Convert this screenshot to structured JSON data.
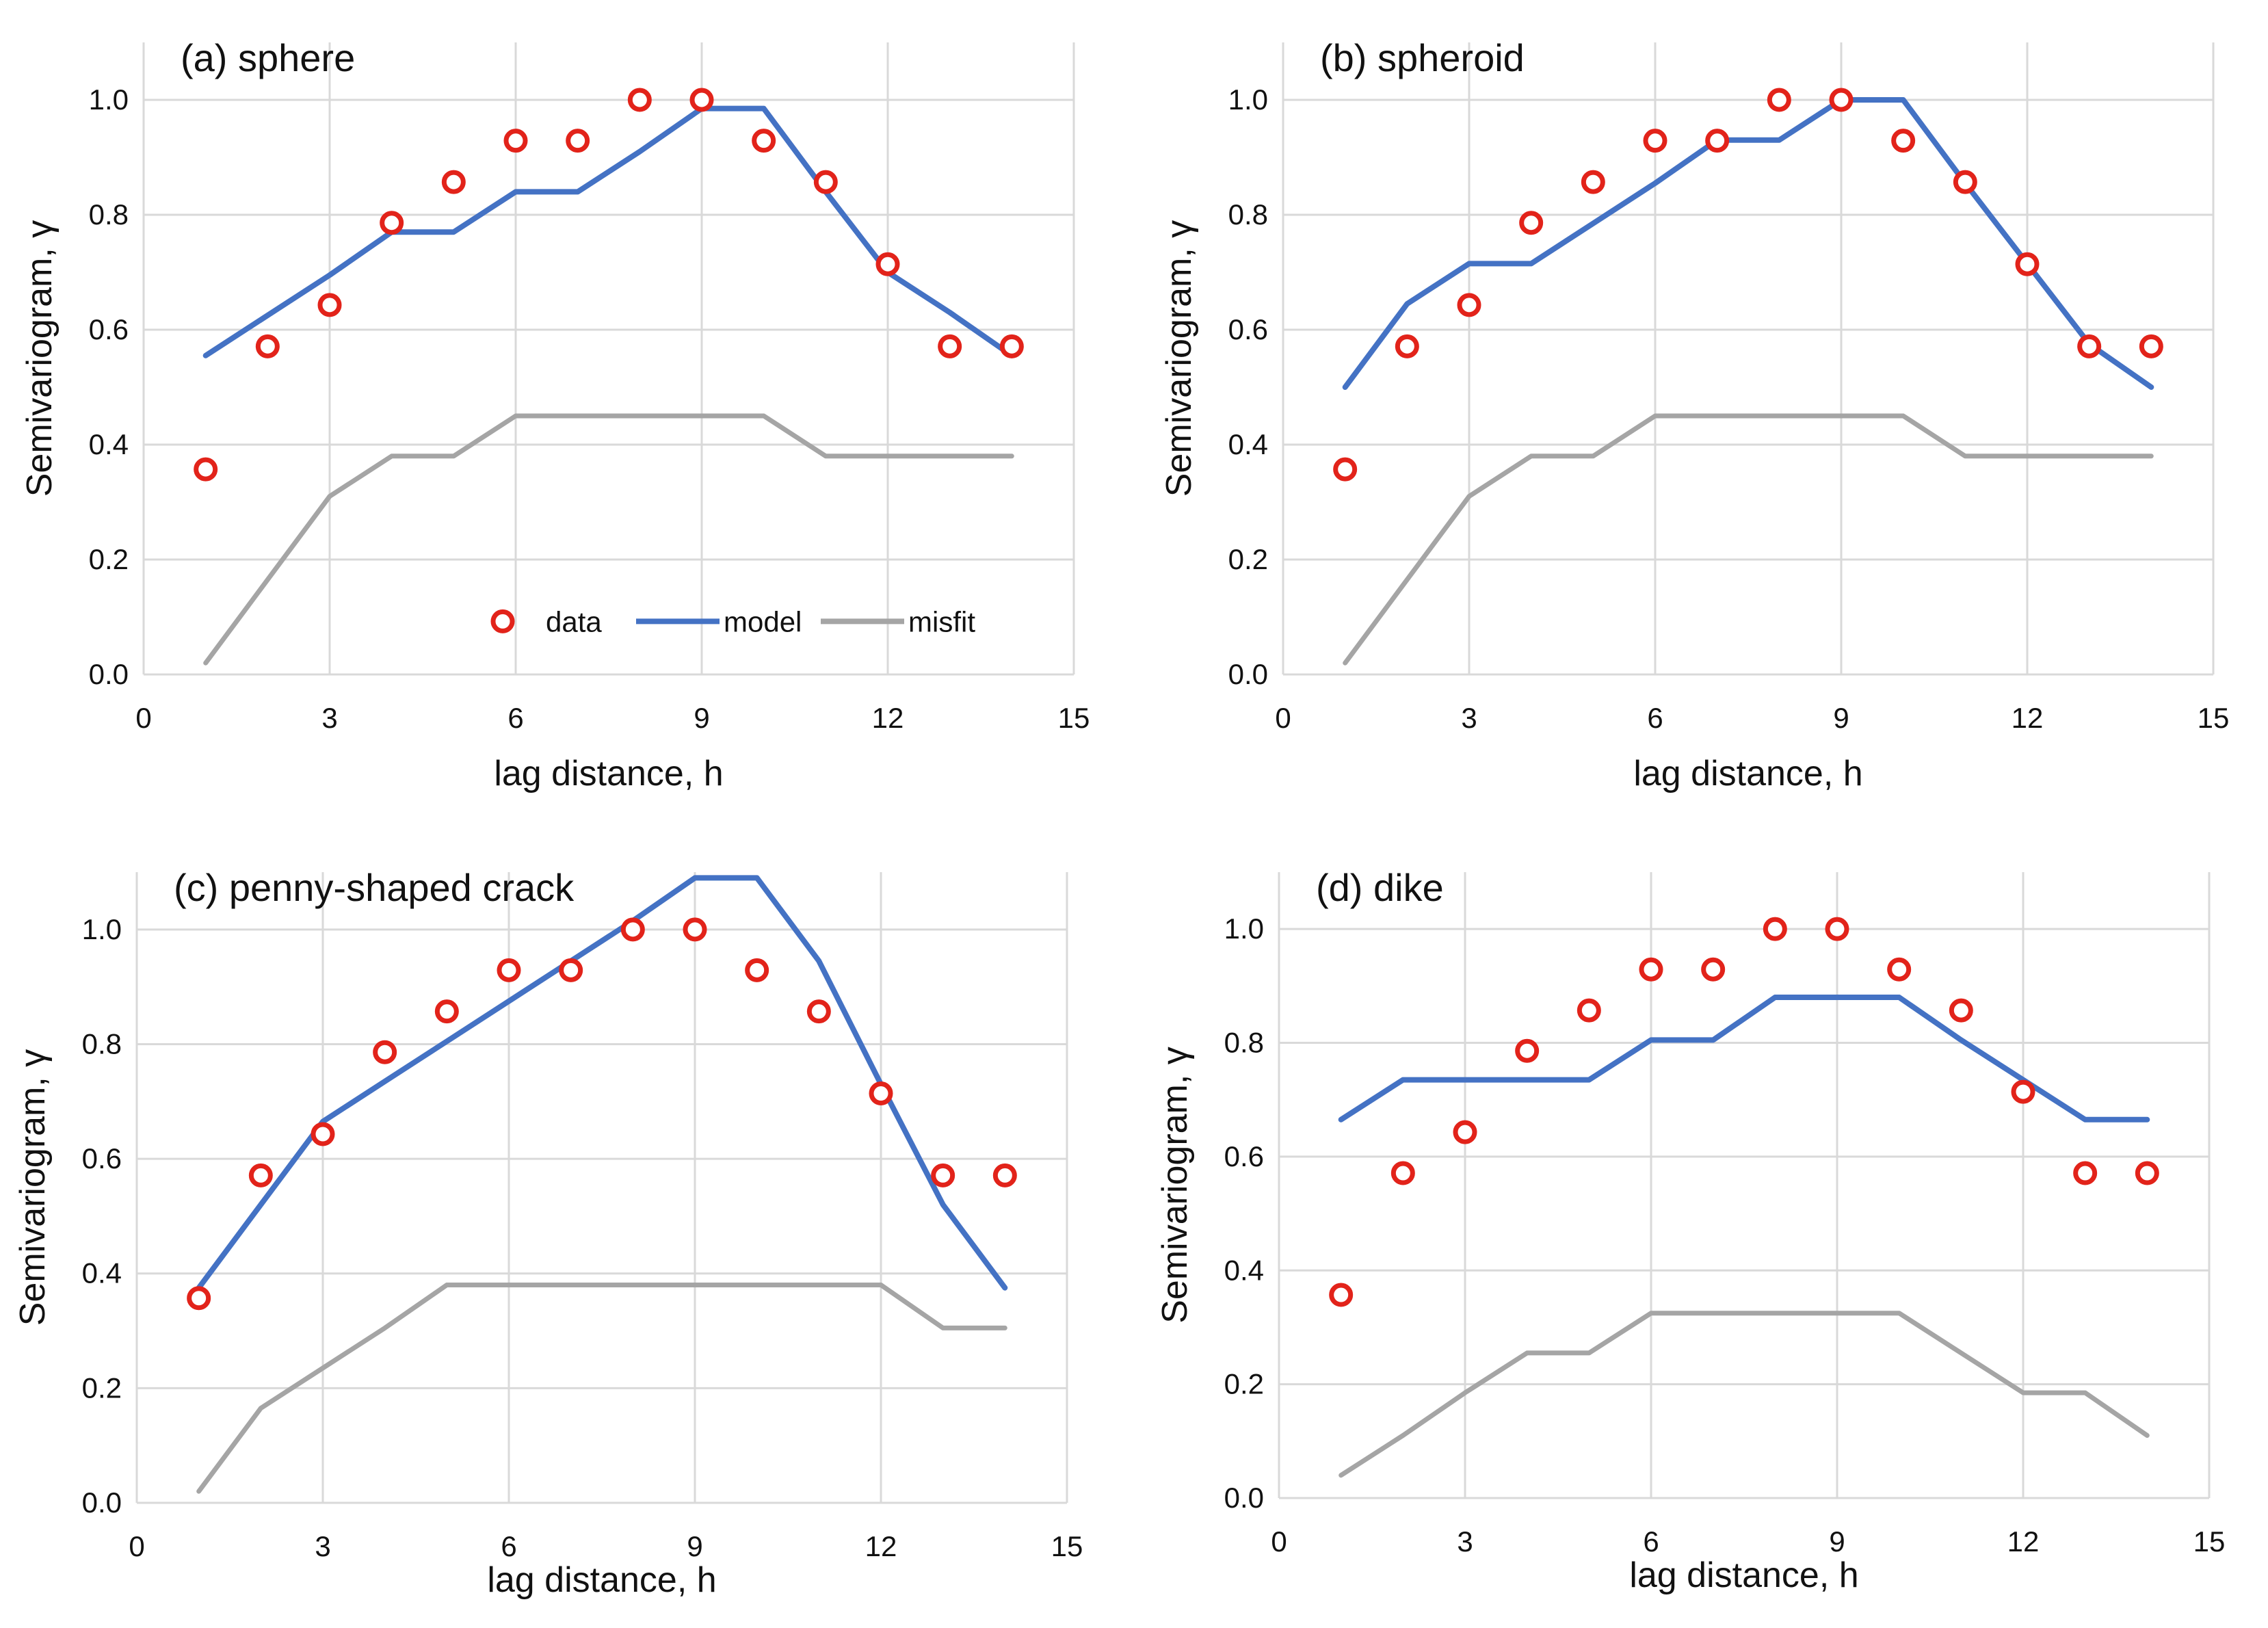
{
  "figure": {
    "legend": {
      "data": "data",
      "model": "model",
      "misfit": "misfit"
    },
    "colors": {
      "data": "#e2231a",
      "model": "#4472c4",
      "misfit": "#a5a5a5",
      "grid": "#d9d9d9",
      "axis": "#bfbfbf"
    }
  },
  "chart_data": [
    {
      "type": "line",
      "title": "(a) sphere",
      "xlabel": "lag distance, h",
      "ylabel": "Semivariogram, γ",
      "xlim": [
        0,
        15
      ],
      "ylim": [
        0,
        1.1
      ],
      "xticks": [
        0,
        3,
        6,
        9,
        12,
        15
      ],
      "yticks": [
        0.0,
        0.2,
        0.4,
        0.6,
        0.8,
        1.0
      ],
      "legend_position": "bottom-right",
      "series": [
        {
          "name": "data",
          "style": "markers",
          "x": [
            1,
            2,
            3,
            4,
            5,
            6,
            7,
            8,
            9,
            10,
            11,
            12,
            13,
            14
          ],
          "y": [
            0.357,
            0.571,
            0.643,
            0.786,
            0.857,
            0.929,
            0.929,
            1.0,
            1.0,
            0.929,
            0.857,
            0.714,
            0.571,
            0.571
          ]
        },
        {
          "name": "model",
          "style": "line",
          "x": [
            1,
            2,
            3,
            4,
            5,
            6,
            7,
            8,
            9,
            10,
            11,
            12,
            13,
            14
          ],
          "y": [
            0.555,
            0.625,
            0.695,
            0.77,
            0.77,
            0.84,
            0.84,
            0.91,
            0.985,
            0.985,
            0.84,
            0.7,
            0.63,
            0.555
          ]
        },
        {
          "name": "misfit",
          "style": "line",
          "x": [
            1,
            2,
            3,
            4,
            5,
            6,
            7,
            8,
            9,
            10,
            11,
            12,
            13,
            14
          ],
          "y": [
            0.02,
            0.165,
            0.31,
            0.38,
            0.38,
            0.45,
            0.45,
            0.45,
            0.45,
            0.45,
            0.38,
            0.38,
            0.38,
            0.38
          ]
        }
      ]
    },
    {
      "type": "line",
      "title": "(b) spheroid",
      "xlabel": "lag distance, h",
      "ylabel": "Semivariogram, γ",
      "xlim": [
        0,
        15
      ],
      "ylim": [
        0,
        1.1
      ],
      "xticks": [
        0,
        3,
        6,
        9,
        12,
        15
      ],
      "yticks": [
        0.0,
        0.2,
        0.4,
        0.6,
        0.8,
        1.0
      ],
      "series": [
        {
          "name": "data",
          "style": "markers",
          "x": [
            1,
            2,
            3,
            4,
            5,
            6,
            7,
            8,
            9,
            10,
            11,
            12,
            13,
            14
          ],
          "y": [
            0.357,
            0.571,
            0.643,
            0.786,
            0.857,
            0.929,
            0.929,
            1.0,
            1.0,
            0.929,
            0.857,
            0.714,
            0.571,
            0.571
          ]
        },
        {
          "name": "model",
          "style": "line",
          "x": [
            1,
            2,
            3,
            4,
            5,
            6,
            7,
            8,
            9,
            10,
            11,
            12,
            13,
            14
          ],
          "y": [
            0.5,
            0.645,
            0.715,
            0.715,
            0.785,
            0.855,
            0.93,
            0.93,
            1.0,
            1.0,
            0.855,
            0.715,
            0.575,
            0.5
          ]
        },
        {
          "name": "misfit",
          "style": "line",
          "x": [
            1,
            2,
            3,
            4,
            5,
            6,
            7,
            8,
            9,
            10,
            11,
            12,
            13,
            14
          ],
          "y": [
            0.02,
            0.165,
            0.31,
            0.38,
            0.38,
            0.45,
            0.45,
            0.45,
            0.45,
            0.45,
            0.38,
            0.38,
            0.38,
            0.38
          ]
        }
      ]
    },
    {
      "type": "line",
      "title": "(c) penny-shaped crack",
      "xlabel": "lag distance, h",
      "ylabel": "Semivariogram, γ",
      "xlim": [
        0,
        15
      ],
      "ylim": [
        0,
        1.1
      ],
      "xticks": [
        0,
        3,
        6,
        9,
        12,
        15
      ],
      "yticks": [
        0.0,
        0.2,
        0.4,
        0.6,
        0.8,
        1.0
      ],
      "series": [
        {
          "name": "data",
          "style": "markers",
          "x": [
            1,
            2,
            3,
            4,
            5,
            6,
            7,
            8,
            9,
            10,
            11,
            12,
            13,
            14
          ],
          "y": [
            0.357,
            0.571,
            0.643,
            0.786,
            0.857,
            0.929,
            0.929,
            1.0,
            1.0,
            0.929,
            0.857,
            0.714,
            0.571,
            0.571
          ]
        },
        {
          "name": "model",
          "style": "line",
          "x": [
            1,
            2,
            3,
            4,
            5,
            6,
            7,
            8,
            9,
            10,
            11,
            12,
            13,
            14
          ],
          "y": [
            0.375,
            0.52,
            0.665,
            0.735,
            0.805,
            0.875,
            0.945,
            1.015,
            1.09,
            1.09,
            0.945,
            0.73,
            0.52,
            0.375
          ]
        },
        {
          "name": "misfit",
          "style": "line",
          "x": [
            1,
            2,
            3,
            4,
            5,
            6,
            7,
            8,
            9,
            10,
            11,
            12,
            13,
            14
          ],
          "y": [
            0.02,
            0.165,
            0.235,
            0.305,
            0.38,
            0.38,
            0.38,
            0.38,
            0.38,
            0.38,
            0.38,
            0.38,
            0.305,
            0.305
          ]
        }
      ]
    },
    {
      "type": "line",
      "title": "(d) dike",
      "xlabel": "lag distance, h",
      "ylabel": "Semivariogram, γ",
      "xlim": [
        0,
        15
      ],
      "ylim": [
        0,
        1.1
      ],
      "xticks": [
        0,
        3,
        6,
        9,
        12,
        15
      ],
      "yticks": [
        0.0,
        0.2,
        0.4,
        0.6,
        0.8,
        1.0
      ],
      "series": [
        {
          "name": "data",
          "style": "markers",
          "x": [
            1,
            2,
            3,
            4,
            5,
            6,
            7,
            8,
            9,
            10,
            11,
            12,
            13,
            14
          ],
          "y": [
            0.357,
            0.571,
            0.643,
            0.786,
            0.857,
            0.929,
            0.929,
            1.0,
            1.0,
            0.929,
            0.857,
            0.714,
            0.571,
            0.571
          ]
        },
        {
          "name": "model",
          "style": "line",
          "x": [
            1,
            2,
            3,
            4,
            5,
            6,
            7,
            8,
            9,
            10,
            11,
            12,
            13,
            14
          ],
          "y": [
            0.665,
            0.735,
            0.735,
            0.735,
            0.735,
            0.805,
            0.805,
            0.88,
            0.88,
            0.88,
            0.805,
            0.735,
            0.665,
            0.665
          ]
        },
        {
          "name": "misfit",
          "style": "line",
          "x": [
            1,
            2,
            3,
            4,
            5,
            6,
            7,
            8,
            9,
            10,
            11,
            12,
            13,
            14
          ],
          "y": [
            0.04,
            0.11,
            0.185,
            0.255,
            0.255,
            0.325,
            0.325,
            0.325,
            0.325,
            0.325,
            0.255,
            0.185,
            0.185,
            0.11
          ]
        }
      ]
    }
  ]
}
